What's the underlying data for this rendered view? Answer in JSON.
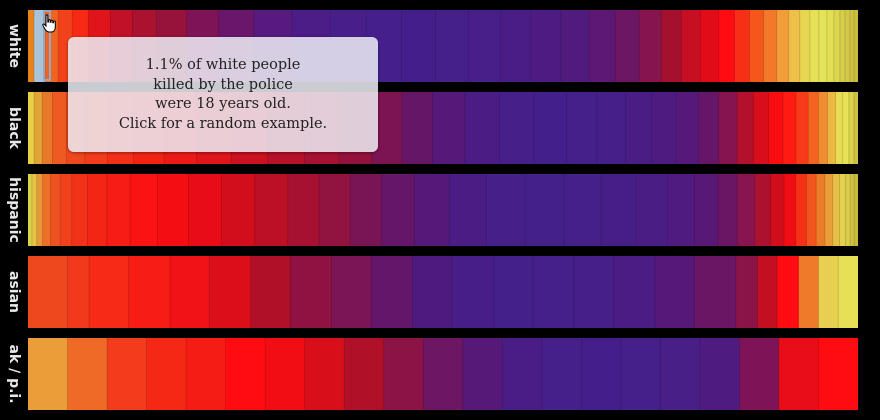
{
  "chart_data": {
    "type": "heatmap",
    "title": "",
    "xlabel": "",
    "ylabel": "",
    "grid": false,
    "legend": "none",
    "color_scale": {
      "stops": [
        "#e6ec55",
        "#f4a23a",
        "#ee3a1e",
        "#ff0a14",
        "#a3102e",
        "#7e1457",
        "#5a1878",
        "#43208c"
      ]
    },
    "rows": [
      {
        "name": "white",
        "label": "white",
        "segments": [
          {
            "weight": 0.6,
            "color": "#e8821c"
          },
          {
            "weight": 1.1,
            "color": "#a9c3d8"
          },
          {
            "weight": 1.3,
            "color": "#f0641f"
          },
          {
            "weight": 1.4,
            "color": "#f2421b"
          },
          {
            "weight": 1.6,
            "color": "#f62a14"
          },
          {
            "weight": 2.2,
            "color": "#e0151a"
          },
          {
            "weight": 2.2,
            "color": "#c01128"
          },
          {
            "weight": 2.4,
            "color": "#aa1230"
          },
          {
            "weight": 3.0,
            "color": "#98133b"
          },
          {
            "weight": 3.2,
            "color": "#7e1457"
          },
          {
            "weight": 3.5,
            "color": "#6a166b"
          },
          {
            "weight": 3.8,
            "color": "#571a7e"
          },
          {
            "weight": 3.8,
            "color": "#4c1d86"
          },
          {
            "weight": 3.6,
            "color": "#481f8a"
          },
          {
            "weight": 3.5,
            "color": "#45208c"
          },
          {
            "weight": 3.4,
            "color": "#441f8b"
          },
          {
            "weight": 3.3,
            "color": "#46208a"
          },
          {
            "weight": 3.2,
            "color": "#481e88"
          },
          {
            "weight": 3.0,
            "color": "#4a1d86"
          },
          {
            "weight": 3.0,
            "color": "#4d1b82"
          },
          {
            "weight": 2.8,
            "color": "#511a7d"
          },
          {
            "weight": 2.6,
            "color": "#5c1874"
          },
          {
            "weight": 2.4,
            "color": "#6c1664"
          },
          {
            "weight": 2.2,
            "color": "#85144f"
          },
          {
            "weight": 2.0,
            "color": "#a5102f"
          },
          {
            "weight": 1.9,
            "color": "#c60f22"
          },
          {
            "weight": 1.8,
            "color": "#e20c18"
          },
          {
            "weight": 1.6,
            "color": "#ff0c12"
          },
          {
            "weight": 1.5,
            "color": "#f72f16"
          },
          {
            "weight": 1.4,
            "color": "#f4561c"
          },
          {
            "weight": 1.3,
            "color": "#f2792a"
          },
          {
            "weight": 1.2,
            "color": "#f19d38"
          },
          {
            "weight": 1.1,
            "color": "#eec04a"
          },
          {
            "weight": 1.0,
            "color": "#e8d552"
          },
          {
            "weight": 0.9,
            "color": "#e6e056"
          },
          {
            "weight": 0.8,
            "color": "#e5e357"
          },
          {
            "weight": 0.7,
            "color": "#e2df54"
          },
          {
            "weight": 0.6,
            "color": "#dcd54e"
          },
          {
            "weight": 0.5,
            "color": "#d7cf4a"
          },
          {
            "weight": 0.5,
            "color": "#d3c946"
          },
          {
            "weight": 0.4,
            "color": "#cfc242"
          },
          {
            "weight": 0.4,
            "color": "#cbbd3f"
          }
        ]
      },
      {
        "name": "black",
        "label": "black",
        "segments": [
          {
            "weight": 0.6,
            "color": "#e9cf46"
          },
          {
            "weight": 0.8,
            "color": "#e2a434"
          },
          {
            "weight": 1.0,
            "color": "#e8782a"
          },
          {
            "weight": 1.4,
            "color": "#ee5a22"
          },
          {
            "weight": 1.8,
            "color": "#f0481e"
          },
          {
            "weight": 2.2,
            "color": "#f33c1b"
          },
          {
            "weight": 2.6,
            "color": "#f42f18"
          },
          {
            "weight": 3.0,
            "color": "#f22315"
          },
          {
            "weight": 3.2,
            "color": "#ec1a16"
          },
          {
            "weight": 3.4,
            "color": "#e0151a"
          },
          {
            "weight": 3.6,
            "color": "#cc1220"
          },
          {
            "weight": 3.6,
            "color": "#b81228"
          },
          {
            "weight": 3.4,
            "color": "#a61232"
          },
          {
            "weight": 3.2,
            "color": "#94133d"
          },
          {
            "weight": 3.0,
            "color": "#7d1452"
          },
          {
            "weight": 3.0,
            "color": "#651666"
          },
          {
            "weight": 3.2,
            "color": "#541979"
          },
          {
            "weight": 3.4,
            "color": "#4a1c84"
          },
          {
            "weight": 3.4,
            "color": "#461f89"
          },
          {
            "weight": 3.2,
            "color": "#431f8b"
          },
          {
            "weight": 3.0,
            "color": "#45208a"
          },
          {
            "weight": 2.8,
            "color": "#471f88"
          },
          {
            "weight": 2.6,
            "color": "#4a1d85"
          },
          {
            "weight": 2.4,
            "color": "#4e1b80"
          },
          {
            "weight": 2.2,
            "color": "#55197a"
          },
          {
            "weight": 2.0,
            "color": "#651668"
          },
          {
            "weight": 1.8,
            "color": "#861450"
          },
          {
            "weight": 1.6,
            "color": "#b2102c"
          },
          {
            "weight": 1.5,
            "color": "#d80e1b"
          },
          {
            "weight": 1.4,
            "color": "#f80d13"
          },
          {
            "weight": 1.3,
            "color": "#ff1a12"
          },
          {
            "weight": 1.2,
            "color": "#f73b18"
          },
          {
            "weight": 1.0,
            "color": "#f2631f"
          },
          {
            "weight": 0.9,
            "color": "#ef8d30"
          },
          {
            "weight": 0.8,
            "color": "#edb842"
          },
          {
            "weight": 0.7,
            "color": "#eadc52"
          },
          {
            "weight": 0.6,
            "color": "#e7e256"
          },
          {
            "weight": 0.5,
            "color": "#dcd24c"
          },
          {
            "weight": 0.4,
            "color": "#cfc142"
          }
        ]
      },
      {
        "name": "hispanic",
        "label": "hispanic",
        "segments": [
          {
            "weight": 0.4,
            "color": "#d9d24a"
          },
          {
            "weight": 0.5,
            "color": "#e4c445"
          },
          {
            "weight": 0.6,
            "color": "#e89838"
          },
          {
            "weight": 0.8,
            "color": "#ec7028"
          },
          {
            "weight": 1.0,
            "color": "#ee5220"
          },
          {
            "weight": 1.2,
            "color": "#f0401c"
          },
          {
            "weight": 1.6,
            "color": "#f23218"
          },
          {
            "weight": 2.0,
            "color": "#f32616"
          },
          {
            "weight": 2.4,
            "color": "#f71c14"
          },
          {
            "weight": 2.8,
            "color": "#fb1212"
          },
          {
            "weight": 3.2,
            "color": "#f40e13"
          },
          {
            "weight": 3.4,
            "color": "#e80c16"
          },
          {
            "weight": 3.4,
            "color": "#d20e1d"
          },
          {
            "weight": 3.4,
            "color": "#bb1026"
          },
          {
            "weight": 3.2,
            "color": "#a61131"
          },
          {
            "weight": 3.2,
            "color": "#91133f"
          },
          {
            "weight": 3.2,
            "color": "#7a1555"
          },
          {
            "weight": 3.4,
            "color": "#651669"
          },
          {
            "weight": 3.6,
            "color": "#541979"
          },
          {
            "weight": 3.8,
            "color": "#4b1c84"
          },
          {
            "weight": 4.0,
            "color": "#461f89"
          },
          {
            "weight": 4.0,
            "color": "#44208b"
          },
          {
            "weight": 3.8,
            "color": "#45208a"
          },
          {
            "weight": 3.6,
            "color": "#471e88"
          },
          {
            "weight": 3.2,
            "color": "#4a1d85"
          },
          {
            "weight": 2.8,
            "color": "#4f1b80"
          },
          {
            "weight": 2.4,
            "color": "#581876"
          },
          {
            "weight": 2.0,
            "color": "#6a1665"
          },
          {
            "weight": 1.8,
            "color": "#881450"
          },
          {
            "weight": 1.6,
            "color": "#ad1130"
          },
          {
            "weight": 1.4,
            "color": "#d20e1d"
          },
          {
            "weight": 1.2,
            "color": "#f00d14"
          },
          {
            "weight": 1.1,
            "color": "#f62f17"
          },
          {
            "weight": 1.0,
            "color": "#f2551d"
          },
          {
            "weight": 0.9,
            "color": "#ee7b29"
          },
          {
            "weight": 0.8,
            "color": "#ea9e38"
          },
          {
            "weight": 0.7,
            "color": "#e6bf46"
          },
          {
            "weight": 0.6,
            "color": "#e2d250"
          },
          {
            "weight": 0.5,
            "color": "#d9cc4a"
          },
          {
            "weight": 0.4,
            "color": "#cfc242"
          },
          {
            "weight": 0.4,
            "color": "#c9bb3e"
          }
        ]
      },
      {
        "name": "asian",
        "label": "asian",
        "segments": [
          {
            "weight": 4.4,
            "color": "#ec4a1e"
          },
          {
            "weight": 2.4,
            "color": "#f03a1b"
          },
          {
            "weight": 4.4,
            "color": "#f52a17"
          },
          {
            "weight": 4.6,
            "color": "#f71d15"
          },
          {
            "weight": 4.4,
            "color": "#f01216"
          },
          {
            "weight": 4.6,
            "color": "#dc0e1a"
          },
          {
            "weight": 4.4,
            "color": "#b01129"
          },
          {
            "weight": 4.6,
            "color": "#8f1342"
          },
          {
            "weight": 4.4,
            "color": "#7b1556"
          },
          {
            "weight": 4.6,
            "color": "#63166a"
          },
          {
            "weight": 4.4,
            "color": "#4f1a7f"
          },
          {
            "weight": 4.6,
            "color": "#471e88"
          },
          {
            "weight": 4.4,
            "color": "#44208b"
          },
          {
            "weight": 4.6,
            "color": "#45208a"
          },
          {
            "weight": 4.4,
            "color": "#471f88"
          },
          {
            "weight": 4.6,
            "color": "#4b1d84"
          },
          {
            "weight": 4.4,
            "color": "#56197a"
          },
          {
            "weight": 4.6,
            "color": "#6a1665"
          },
          {
            "weight": 2.4,
            "color": "#8a1348"
          },
          {
            "weight": 2.2,
            "color": "#c20f22"
          },
          {
            "weight": 2.4,
            "color": "#ff0d12"
          },
          {
            "weight": 2.2,
            "color": "#ee7a2a"
          },
          {
            "weight": 2.2,
            "color": "#e7d050"
          },
          {
            "weight": 2.2,
            "color": "#e6e056"
          }
        ]
      },
      {
        "name": "ak-pi",
        "label": "ak / p.i.",
        "segments": [
          {
            "weight": 3.4,
            "color": "#eb9d3a"
          },
          {
            "weight": 3.4,
            "color": "#ee6a26"
          },
          {
            "weight": 3.4,
            "color": "#f23c1b"
          },
          {
            "weight": 3.4,
            "color": "#f52816"
          },
          {
            "weight": 3.4,
            "color": "#f51c15"
          },
          {
            "weight": 3.4,
            "color": "#ff0c12"
          },
          {
            "weight": 3.4,
            "color": "#f20c14"
          },
          {
            "weight": 3.4,
            "color": "#d80e1b"
          },
          {
            "weight": 3.4,
            "color": "#b01129"
          },
          {
            "weight": 3.4,
            "color": "#8c1345"
          },
          {
            "weight": 3.4,
            "color": "#6d1663"
          },
          {
            "weight": 3.4,
            "color": "#571978"
          },
          {
            "weight": 3.4,
            "color": "#4a1c85"
          },
          {
            "weight": 3.4,
            "color": "#45208a"
          },
          {
            "weight": 3.4,
            "color": "#441f8b"
          },
          {
            "weight": 3.4,
            "color": "#451f8a"
          },
          {
            "weight": 3.4,
            "color": "#481e87"
          },
          {
            "weight": 3.4,
            "color": "#4e1b81"
          },
          {
            "weight": 3.4,
            "color": "#7e1457"
          },
          {
            "weight": 3.4,
            "color": "#e80d16"
          },
          {
            "weight": 3.4,
            "color": "#ff0c12"
          }
        ]
      }
    ]
  },
  "tooltip": {
    "lines": [
      "1.1% of white people",
      "killed by the police",
      "were 18 years old.",
      "Click for a random example."
    ]
  },
  "hover": {
    "row": "white",
    "percent": 1.1,
    "age": 18
  }
}
